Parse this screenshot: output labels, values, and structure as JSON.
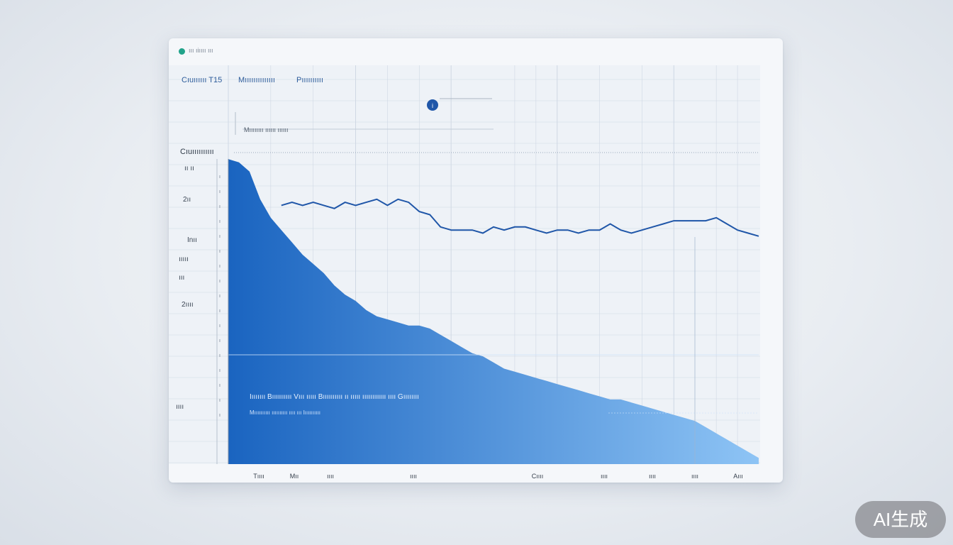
{
  "window": {
    "title": "ııı ıiıııı ııı",
    "dot_color": "#21a38a"
  },
  "legend": [
    {
      "label": "Cıuıııııı T15"
    },
    {
      "label": "Mıııııııııııııı"
    },
    {
      "label": "Pıııııııııı"
    }
  ],
  "annotations": {
    "top_note": "Mıııııııı ıııııı ıııııı",
    "marker_icon": "info-marker-icon"
  },
  "axis": {
    "y_title": "Cıuıııııııııı",
    "y_labels": [
      "ıı ıı",
      "2ıı",
      "Inıı",
      "ııııı",
      "ııı",
      "2ıııı",
      "ıııı"
    ],
    "y_ticks": [
      "ı",
      "ı",
      "ı",
      "ı",
      "ı",
      "ı",
      "ı",
      "ı",
      "ı",
      "ı",
      "ı",
      "ı",
      "ı",
      "ı",
      "ı",
      "ı",
      "ı"
    ],
    "x_labels": [
      "Tıııı",
      "Mıı",
      "ıııı",
      "ıııı",
      "Cıııı",
      "ıııı",
      "ıııı",
      "ıııı",
      "Aııı"
    ]
  },
  "overlay": {
    "title": "Iııııııı Bıııııııııı Vııı ııııı Bıııııııııı ıı ııııı ıııııııııııı ıııı Gıııııııı",
    "subtitle": "Mıııııııııı ıııııııııı ıııı ııı Iıııııııııı"
  },
  "colors": {
    "line": "#1f56a8",
    "area_dark": "#1a64c0",
    "area_light": "#8ec4f5",
    "grid": "#cfd8e4"
  },
  "badge": {
    "label": "AI生成"
  },
  "chart_data": {
    "type": "area",
    "x": [
      0,
      2,
      4,
      6,
      8,
      10,
      12,
      14,
      16,
      18,
      20,
      22,
      24,
      26,
      28,
      30,
      32,
      34,
      36,
      38,
      40,
      42,
      44,
      46,
      48,
      50,
      52,
      54,
      56,
      58,
      60,
      62,
      64,
      66,
      68,
      70,
      72,
      74,
      76,
      78,
      80,
      82,
      84,
      86,
      88,
      90,
      92,
      94,
      96,
      98,
      100
    ],
    "series": [
      {
        "values": [
          99,
          98,
          95,
          86,
          80,
          76,
          72,
          68,
          65,
          62,
          58,
          55,
          53,
          50,
          48,
          47,
          46,
          45,
          45,
          44,
          42,
          40,
          38,
          36,
          35,
          33,
          31,
          30,
          29,
          28,
          27,
          26,
          25,
          24,
          23,
          22,
          21,
          21,
          20,
          19,
          18,
          17,
          16,
          15,
          14,
          12,
          10,
          8,
          6,
          4,
          2
        ]
      },
      {
        "values": [
          85,
          83,
          84,
          83,
          85,
          84,
          85,
          84,
          85,
          84,
          83,
          85,
          84,
          85,
          86,
          84,
          86,
          85,
          82,
          81,
          77,
          76,
          76,
          76,
          75,
          77,
          76,
          77,
          77,
          76,
          75,
          76,
          76,
          75,
          76,
          76,
          78,
          76,
          75,
          76,
          77,
          78,
          79,
          79,
          79,
          79,
          80,
          78,
          76,
          75,
          74
        ]
      }
    ],
    "ylim": [
      0,
      100
    ],
    "xlim": [
      0,
      100
    ]
  }
}
